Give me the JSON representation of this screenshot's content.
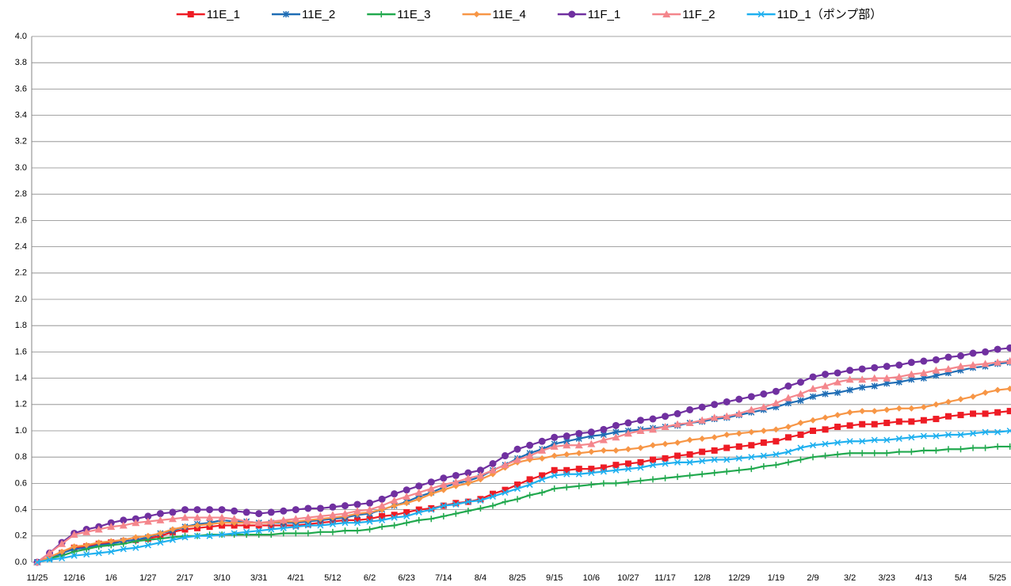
{
  "chart_data": {
    "type": "line",
    "categories": [
      "11/25",
      null,
      null,
      "12/16",
      null,
      null,
      "1/6",
      null,
      null,
      "1/27",
      null,
      null,
      "2/17",
      null,
      null,
      "3/10",
      null,
      null,
      "3/31",
      null,
      null,
      "4/21",
      null,
      null,
      "5/12",
      null,
      null,
      "6/2",
      null,
      null,
      "6/23",
      null,
      null,
      "7/14",
      null,
      null,
      "8/4",
      null,
      null,
      "8/25",
      null,
      null,
      "9/15",
      null,
      null,
      "10/6",
      null,
      null,
      "10/27",
      null,
      null,
      "11/17",
      null,
      null,
      "12/8",
      null,
      null,
      "12/29",
      null,
      null,
      "1/19",
      null,
      null,
      "2/9",
      null,
      null,
      "3/2",
      null,
      null,
      "3/23",
      null,
      null,
      "4/13",
      null,
      null,
      "5/4",
      null,
      null,
      "5/25",
      null
    ],
    "ylim": [
      0,
      4
    ],
    "yticks": [
      {
        "value": 0,
        "label": "0.0"
      },
      0.2,
      0.4,
      0.6,
      0.8,
      {
        "value": 1,
        "label": "1.0"
      },
      1.2,
      1.4,
      1.6,
      1.8,
      {
        "value": 2,
        "label": "2.0"
      },
      2.2,
      2.4,
      2.6,
      2.8,
      {
        "value": 3,
        "label": "3.0"
      },
      3.2,
      3.4,
      3.6,
      3.8,
      {
        "value": 4,
        "label": "4.0"
      }
    ],
    "grid": true,
    "legend": "top",
    "series": [
      {
        "name": "11E_1",
        "color": "#ee1c25",
        "marker": "square",
        "values": [
          0,
          0.04,
          0.07,
          0.11,
          0.12,
          0.14,
          0.15,
          0.16,
          0.17,
          0.18,
          0.2,
          0.23,
          0.25,
          0.26,
          0.27,
          0.28,
          0.28,
          0.28,
          0.28,
          0.28,
          0.28,
          0.28,
          0.29,
          0.3,
          0.31,
          0.32,
          0.32,
          0.33,
          0.35,
          0.36,
          0.38,
          0.4,
          0.41,
          0.43,
          0.45,
          0.46,
          0.48,
          0.52,
          0.55,
          0.59,
          0.63,
          0.66,
          0.7,
          0.7,
          0.71,
          0.71,
          0.72,
          0.74,
          0.75,
          0.76,
          0.78,
          0.79,
          0.81,
          0.82,
          0.84,
          0.85,
          0.87,
          0.88,
          0.89,
          0.91,
          0.92,
          0.95,
          0.97,
          1.0,
          1.01,
          1.03,
          1.04,
          1.05,
          1.05,
          1.06,
          1.07,
          1.07,
          1.08,
          1.09,
          1.11,
          1.12,
          1.13,
          1.13,
          1.14,
          1.15
        ]
      },
      {
        "name": "11E_2",
        "color": "#1f6db5",
        "marker": "star",
        "values": [
          0,
          0.03,
          0.07,
          0.1,
          0.11,
          0.13,
          0.14,
          0.16,
          0.17,
          0.19,
          0.22,
          0.24,
          0.27,
          0.29,
          0.3,
          0.32,
          0.31,
          0.31,
          0.3,
          0.3,
          0.3,
          0.3,
          0.31,
          0.32,
          0.33,
          0.34,
          0.36,
          0.37,
          0.4,
          0.43,
          0.46,
          0.5,
          0.53,
          0.57,
          0.6,
          0.62,
          0.65,
          0.7,
          0.74,
          0.79,
          0.83,
          0.86,
          0.9,
          0.92,
          0.94,
          0.96,
          0.97,
          0.99,
          1.0,
          1.01,
          1.02,
          1.03,
          1.04,
          1.06,
          1.07,
          1.09,
          1.1,
          1.12,
          1.14,
          1.16,
          1.18,
          1.21,
          1.23,
          1.26,
          1.28,
          1.29,
          1.31,
          1.33,
          1.34,
          1.36,
          1.37,
          1.39,
          1.4,
          1.42,
          1.44,
          1.46,
          1.48,
          1.49,
          1.51,
          1.52
        ]
      },
      {
        "name": "11E_3",
        "color": "#22a94f",
        "marker": "plus",
        "values": [
          0,
          0.03,
          0.05,
          0.08,
          0.1,
          0.12,
          0.13,
          0.14,
          0.16,
          0.17,
          0.18,
          0.19,
          0.2,
          0.2,
          0.21,
          0.21,
          0.21,
          0.21,
          0.21,
          0.21,
          0.22,
          0.22,
          0.22,
          0.23,
          0.23,
          0.24,
          0.24,
          0.25,
          0.27,
          0.28,
          0.3,
          0.32,
          0.33,
          0.35,
          0.37,
          0.39,
          0.41,
          0.43,
          0.46,
          0.48,
          0.51,
          0.53,
          0.56,
          0.57,
          0.58,
          0.59,
          0.6,
          0.6,
          0.61,
          0.62,
          0.63,
          0.64,
          0.65,
          0.66,
          0.67,
          0.68,
          0.69,
          0.7,
          0.71,
          0.73,
          0.74,
          0.76,
          0.78,
          0.8,
          0.81,
          0.82,
          0.83,
          0.83,
          0.83,
          0.83,
          0.84,
          0.84,
          0.85,
          0.85,
          0.86,
          0.86,
          0.87,
          0.87,
          0.88,
          0.88
        ]
      },
      {
        "name": "11E_4",
        "color": "#f79646",
        "marker": "diamond",
        "values": [
          0,
          0.04,
          0.08,
          0.12,
          0.13,
          0.15,
          0.16,
          0.17,
          0.19,
          0.2,
          0.22,
          0.25,
          0.27,
          0.28,
          0.29,
          0.3,
          0.3,
          0.3,
          0.3,
          0.3,
          0.31,
          0.31,
          0.32,
          0.33,
          0.34,
          0.35,
          0.37,
          0.38,
          0.4,
          0.43,
          0.45,
          0.48,
          0.52,
          0.55,
          0.58,
          0.6,
          0.63,
          0.67,
          0.72,
          0.76,
          0.78,
          0.79,
          0.81,
          0.82,
          0.83,
          0.84,
          0.85,
          0.85,
          0.86,
          0.87,
          0.89,
          0.9,
          0.91,
          0.93,
          0.94,
          0.95,
          0.97,
          0.98,
          0.99,
          1.0,
          1.01,
          1.03,
          1.06,
          1.08,
          1.1,
          1.12,
          1.14,
          1.15,
          1.15,
          1.16,
          1.17,
          1.17,
          1.18,
          1.2,
          1.22,
          1.24,
          1.26,
          1.29,
          1.31,
          1.32
        ]
      },
      {
        "name": "11F_1",
        "color": "#7030a0",
        "marker": "circle",
        "values": [
          0,
          0.07,
          0.15,
          0.22,
          0.25,
          0.27,
          0.3,
          0.32,
          0.33,
          0.35,
          0.37,
          0.38,
          0.4,
          0.4,
          0.4,
          0.4,
          0.39,
          0.38,
          0.37,
          0.38,
          0.39,
          0.4,
          0.41,
          0.41,
          0.42,
          0.43,
          0.44,
          0.45,
          0.48,
          0.52,
          0.55,
          0.58,
          0.61,
          0.64,
          0.66,
          0.68,
          0.7,
          0.75,
          0.81,
          0.86,
          0.89,
          0.92,
          0.95,
          0.96,
          0.98,
          0.99,
          1.01,
          1.04,
          1.06,
          1.08,
          1.09,
          1.11,
          1.13,
          1.16,
          1.18,
          1.2,
          1.22,
          1.24,
          1.26,
          1.28,
          1.3,
          1.34,
          1.37,
          1.41,
          1.43,
          1.44,
          1.46,
          1.47,
          1.48,
          1.49,
          1.5,
          1.52,
          1.53,
          1.54,
          1.56,
          1.57,
          1.59,
          1.6,
          1.62,
          1.63
        ]
      },
      {
        "name": "11F_2",
        "color": "#f4868c",
        "marker": "triangle",
        "values": [
          0,
          0.07,
          0.14,
          0.21,
          0.23,
          0.25,
          0.27,
          0.28,
          0.3,
          0.31,
          0.32,
          0.33,
          0.34,
          0.34,
          0.34,
          0.34,
          0.33,
          0.31,
          0.3,
          0.31,
          0.32,
          0.33,
          0.34,
          0.35,
          0.36,
          0.37,
          0.39,
          0.4,
          0.43,
          0.47,
          0.5,
          0.53,
          0.56,
          0.59,
          0.61,
          0.64,
          0.66,
          0.7,
          0.74,
          0.78,
          0.81,
          0.85,
          0.88,
          0.89,
          0.89,
          0.9,
          0.93,
          0.95,
          0.98,
          1.0,
          1.01,
          1.03,
          1.05,
          1.06,
          1.08,
          1.1,
          1.11,
          1.13,
          1.16,
          1.18,
          1.21,
          1.25,
          1.28,
          1.32,
          1.34,
          1.37,
          1.39,
          1.39,
          1.4,
          1.4,
          1.41,
          1.43,
          1.44,
          1.46,
          1.47,
          1.49,
          1.5,
          1.51,
          1.52,
          1.53
        ]
      },
      {
        "name": "11D_1（ポンプ部）",
        "color": "#1fb0ef",
        "marker": "x",
        "values": [
          0,
          0.02,
          0.03,
          0.05,
          0.06,
          0.07,
          0.08,
          0.1,
          0.11,
          0.13,
          0.15,
          0.17,
          0.19,
          0.2,
          0.2,
          0.21,
          0.22,
          0.23,
          0.24,
          0.25,
          0.26,
          0.27,
          0.28,
          0.28,
          0.29,
          0.3,
          0.3,
          0.31,
          0.32,
          0.34,
          0.35,
          0.38,
          0.4,
          0.43,
          0.44,
          0.46,
          0.47,
          0.5,
          0.53,
          0.56,
          0.59,
          0.63,
          0.66,
          0.67,
          0.67,
          0.68,
          0.69,
          0.7,
          0.71,
          0.72,
          0.74,
          0.75,
          0.76,
          0.76,
          0.77,
          0.78,
          0.78,
          0.79,
          0.8,
          0.81,
          0.82,
          0.84,
          0.87,
          0.89,
          0.9,
          0.91,
          0.92,
          0.92,
          0.93,
          0.93,
          0.94,
          0.95,
          0.96,
          0.96,
          0.97,
          0.97,
          0.98,
          0.99,
          0.99,
          1.0
        ]
      }
    ]
  }
}
